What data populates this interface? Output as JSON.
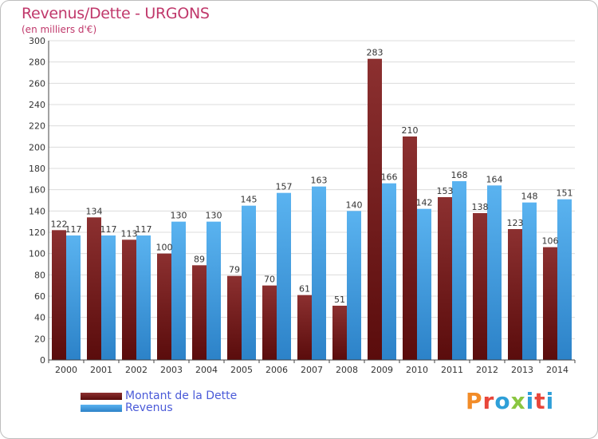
{
  "header": {
    "title": "Revenus/Dette - URGONS",
    "subtitle": "(en milliers d'€)"
  },
  "legend": {
    "debt_label": "Montant de la Dette",
    "revenue_label": "Revenus"
  },
  "logo": {
    "text": "Proxiti",
    "colors": [
      "#f28c28",
      "#e8463a",
      "#2e9fd8",
      "#8ac640",
      "#2e9fd8",
      "#e8463a",
      "#2e9fd8"
    ]
  },
  "colors": {
    "debt": "#7a1f1f",
    "revenue": "#4aa3e6",
    "title": "#c0386b",
    "legend_text": "#4a5ad8"
  },
  "chart_data": {
    "type": "bar",
    "categories": [
      "2000",
      "2001",
      "2002",
      "2003",
      "2004",
      "2005",
      "2006",
      "2007",
      "2008",
      "2009",
      "2010",
      "2011",
      "2012",
      "2013",
      "2014"
    ],
    "series": [
      {
        "name": "Montant de la Dette",
        "values": [
          122,
          134,
          113,
          100,
          89,
          79,
          70,
          61,
          51,
          283,
          210,
          153,
          138,
          123,
          106
        ]
      },
      {
        "name": "Revenus",
        "values": [
          117,
          117,
          117,
          130,
          130,
          145,
          157,
          163,
          140,
          166,
          142,
          168,
          164,
          148,
          151
        ]
      }
    ],
    "ylim": [
      0,
      300
    ],
    "yticks": [
      0,
      20,
      40,
      60,
      80,
      100,
      120,
      140,
      160,
      180,
      200,
      220,
      240,
      260,
      280,
      300
    ],
    "grid": true,
    "legend_position": "bottom-left"
  }
}
